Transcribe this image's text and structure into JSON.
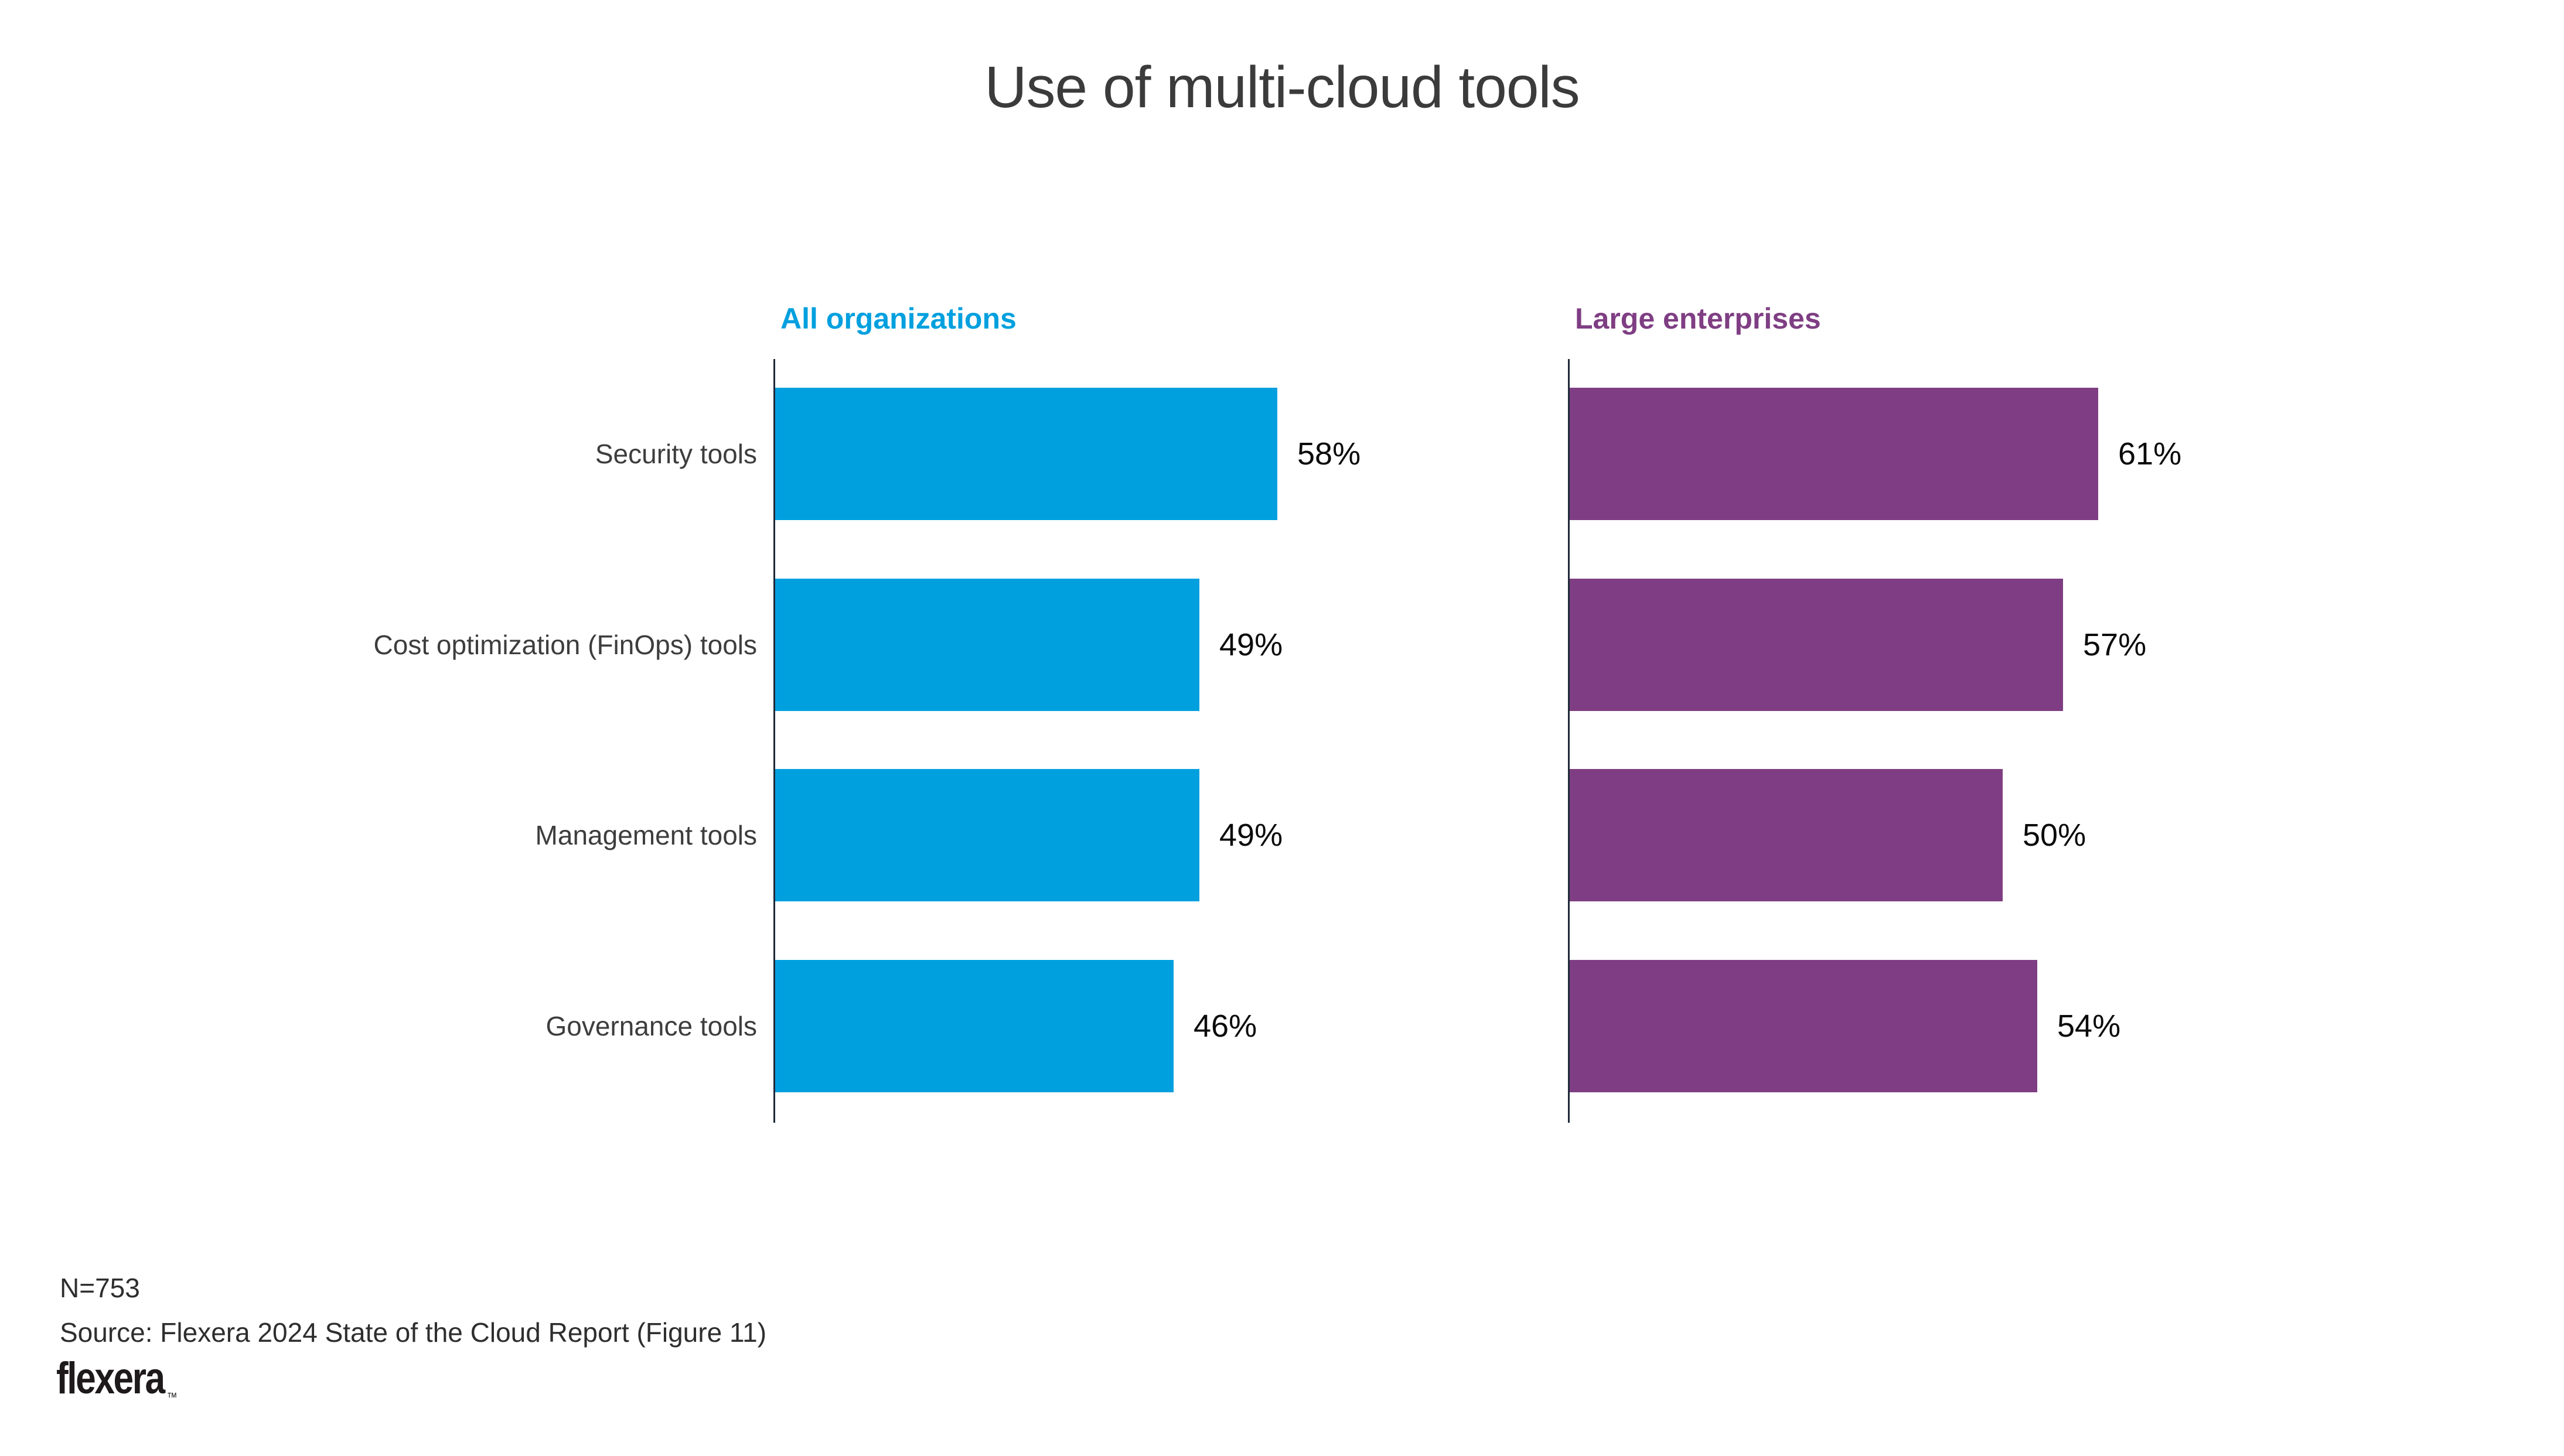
{
  "page": {
    "title": "Use of multi-cloud tools"
  },
  "chart_data": {
    "type": "bar",
    "orientation": "horizontal",
    "title": "Use of multi-cloud tools",
    "categories": [
      "Security tools",
      "Cost optimization (FinOps) tools",
      "Management tools",
      "Governance tools"
    ],
    "series": [
      {
        "name": "All organizations",
        "values": [
          58,
          49,
          49,
          46
        ],
        "color": "#00A0DF"
      },
      {
        "name": "Large enterprises",
        "values": [
          61,
          57,
          50,
          54
        ],
        "color": "#7F3E83"
      }
    ],
    "value_format": "percent",
    "xlim": [
      0,
      100
    ],
    "grid": false,
    "data_labels": true,
    "legend_position": "panel-headers-top"
  },
  "footer": {
    "n_label": "N=753",
    "source": "Source: Flexera 2024 State of the Cloud Report (Figure 11)",
    "logo_text": "flexera",
    "logo_trademark": "™"
  },
  "colors": {
    "all_organizations_blue": "#00A0DF",
    "large_enterprises_purple": "#7F3E83",
    "axis": "#1e2a38",
    "title_text": "#3b3b3b",
    "label_text": "#3d3d3d",
    "value_text": "#0a0a0a"
  }
}
